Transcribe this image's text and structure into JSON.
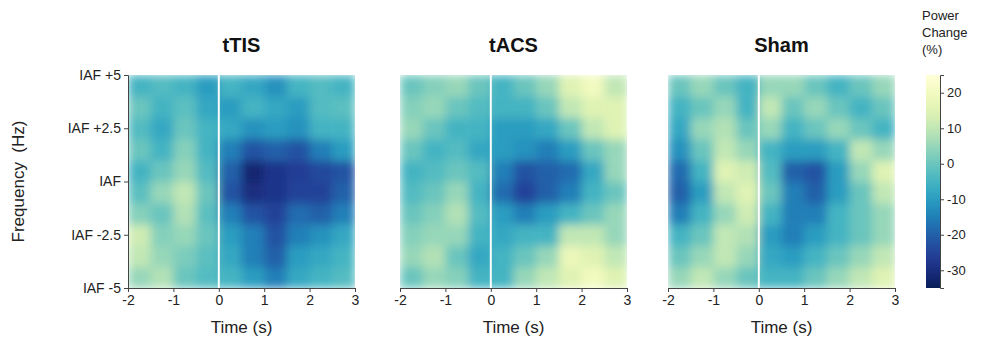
{
  "chart_data": {
    "type": "heatmap",
    "xlabel": "Time (s)",
    "ylabel": "Frequency  (Hz)",
    "x_edges": [
      -2,
      -1.5,
      -1,
      -0.5,
      0,
      0.5,
      1,
      1.5,
      2,
      2.5,
      3
    ],
    "y_edges": [
      -5,
      -4,
      -3,
      -2,
      -1,
      0,
      1,
      2,
      3,
      4,
      5
    ],
    "xlim": [
      -2,
      3
    ],
    "xticks": [
      -2,
      -1,
      0,
      1,
      2,
      3
    ],
    "ylim": [
      -5,
      5
    ],
    "yticks": [
      {
        "value": 5,
        "label": "IAF +5"
      },
      {
        "value": 2.5,
        "label": "IAF +2.5"
      },
      {
        "value": 0,
        "label": "IAF"
      },
      {
        "value": -2.5,
        "label": "IAF -2.5"
      },
      {
        "value": -5,
        "label": "IAF -5"
      }
    ],
    "vline": 0,
    "colorbar": {
      "title": "Power Change (%)",
      "range": [
        -35,
        25
      ],
      "ticks": [
        -30,
        -20,
        -10,
        0,
        10,
        20
      ]
    },
    "panels": [
      {
        "title": "tTIS",
        "values": [
          [
            5,
            8,
            0,
            -3,
            -5,
            -10,
            -15,
            -8,
            -5,
            -3
          ],
          [
            10,
            5,
            2,
            -2,
            -8,
            -15,
            -20,
            -10,
            -8,
            -5
          ],
          [
            12,
            3,
            5,
            0,
            -10,
            -15,
            -22,
            -15,
            -12,
            -8
          ],
          [
            3,
            0,
            8,
            -2,
            -15,
            -22,
            -25,
            -18,
            -20,
            -15
          ],
          [
            -2,
            5,
            10,
            0,
            -22,
            -30,
            -28,
            -25,
            -25,
            -20
          ],
          [
            -5,
            0,
            5,
            -3,
            -20,
            -32,
            -28,
            -26,
            -24,
            -22
          ],
          [
            0,
            -5,
            3,
            -5,
            -15,
            -22,
            -20,
            -22,
            -15,
            -10
          ],
          [
            -3,
            -8,
            0,
            -5,
            -8,
            -12,
            -10,
            -12,
            -5,
            -5
          ],
          [
            0,
            -5,
            -2,
            -8,
            -10,
            -5,
            -8,
            -10,
            -3,
            -2
          ],
          [
            -5,
            -3,
            -5,
            -10,
            -5,
            -8,
            -12,
            -5,
            -3,
            -5
          ]
        ]
      },
      {
        "title": "tACS",
        "values": [
          [
            0,
            5,
            3,
            -5,
            -5,
            5,
            10,
            15,
            20,
            15
          ],
          [
            5,
            8,
            0,
            -8,
            -5,
            0,
            5,
            18,
            15,
            10
          ],
          [
            3,
            5,
            5,
            -5,
            -8,
            -5,
            -5,
            10,
            10,
            5
          ],
          [
            0,
            3,
            8,
            -3,
            -10,
            -15,
            -10,
            -5,
            0,
            5
          ],
          [
            -3,
            0,
            5,
            -5,
            -18,
            -25,
            -20,
            -15,
            -5,
            0
          ],
          [
            -5,
            -3,
            0,
            -3,
            -15,
            -22,
            -20,
            -18,
            -8,
            5
          ],
          [
            0,
            -5,
            -3,
            -8,
            -10,
            -12,
            -15,
            -10,
            0,
            5
          ],
          [
            5,
            0,
            -5,
            -5,
            -10,
            -10,
            -8,
            0,
            10,
            15
          ],
          [
            3,
            5,
            0,
            -3,
            -5,
            -5,
            0,
            10,
            15,
            15
          ],
          [
            0,
            3,
            5,
            0,
            -5,
            0,
            5,
            15,
            20,
            10
          ]
        ]
      },
      {
        "title": "Sham",
        "values": [
          [
            5,
            10,
            5,
            0,
            -5,
            -5,
            0,
            5,
            10,
            15
          ],
          [
            0,
            5,
            10,
            5,
            -8,
            -10,
            -5,
            0,
            5,
            10
          ],
          [
            -5,
            0,
            10,
            8,
            -10,
            -15,
            -10,
            -5,
            0,
            5
          ],
          [
            -15,
            -5,
            5,
            12,
            -5,
            -15,
            -15,
            -5,
            0,
            5
          ],
          [
            -20,
            -10,
            10,
            15,
            0,
            -15,
            -20,
            -10,
            0,
            10
          ],
          [
            -18,
            -5,
            15,
            12,
            -3,
            -20,
            -22,
            -10,
            5,
            15
          ],
          [
            -12,
            0,
            10,
            5,
            -5,
            -10,
            -10,
            -5,
            10,
            5
          ],
          [
            -8,
            5,
            8,
            0,
            5,
            -5,
            0,
            5,
            0,
            -5
          ],
          [
            -5,
            0,
            5,
            -5,
            10,
            0,
            5,
            0,
            -5,
            0
          ],
          [
            0,
            5,
            0,
            -5,
            5,
            5,
            0,
            -5,
            0,
            5
          ]
        ]
      }
    ]
  }
}
